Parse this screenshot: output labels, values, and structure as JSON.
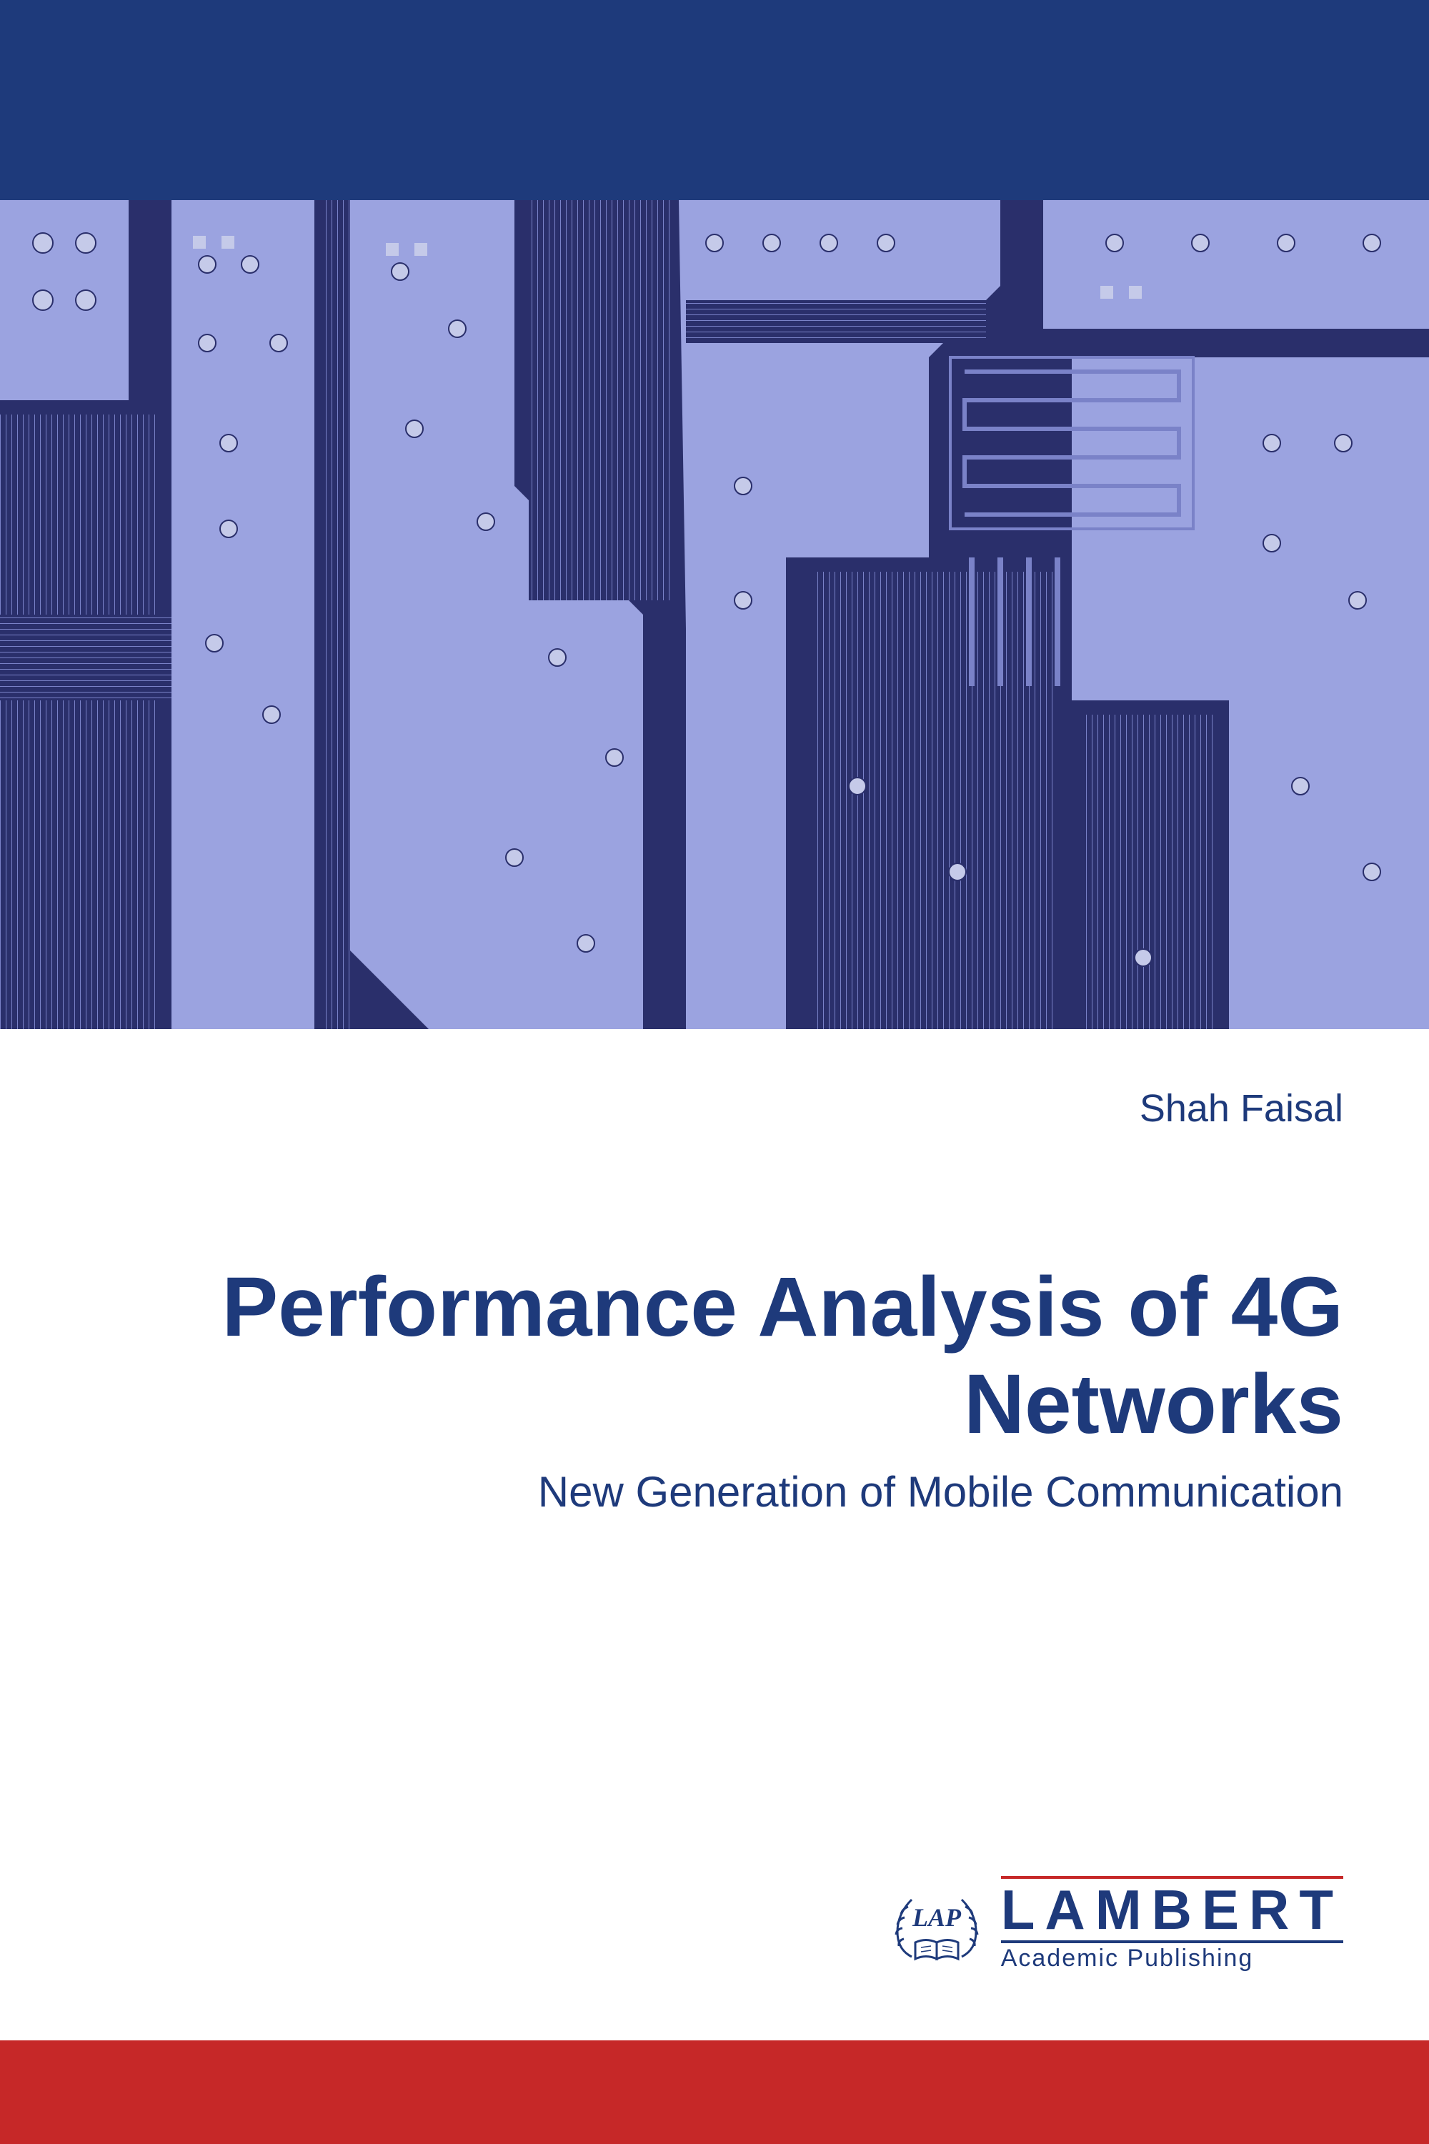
{
  "layout": {
    "top_bar_height": 280,
    "circuit_height": 1160,
    "bottom_bar_height": 145
  },
  "colors": {
    "top_bar": "#1e3a7b",
    "bottom_bar": "#c62828",
    "title_text": "#1e3a7b",
    "author_text": "#1e3a7b",
    "subtitle_text": "#1e3a7b",
    "publisher_text": "#1e3a7b",
    "publisher_accent": "#c62828",
    "circuit_light": "#9ba3e0",
    "circuit_dark": "#2a2f6b",
    "circuit_trace": "#7a82c8",
    "circuit_pad": "#c5cae9"
  },
  "author": "Shah Faisal",
  "title": "Performance Analysis of 4G Networks",
  "subtitle": "New Generation of Mobile Communication",
  "publisher": {
    "emblem_text": "LAP",
    "name": "LAMBERT",
    "tagline": "Academic Publishing"
  },
  "typography": {
    "author_size": 54,
    "title_size": 118,
    "subtitle_size": 60,
    "publisher_name_size": 78,
    "publisher_tagline_size": 34
  }
}
